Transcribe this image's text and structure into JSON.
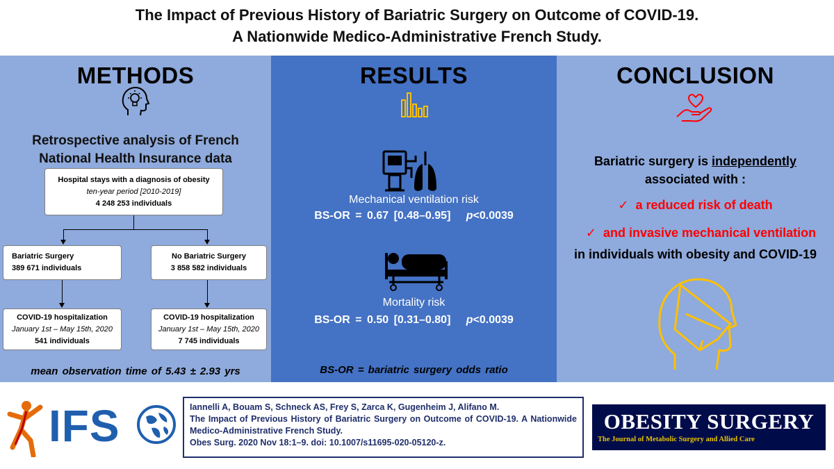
{
  "title": {
    "line1": "The Impact of Previous History of Bariatric Surgery on Outcome of COVID-19.",
    "line2": "A Nationwide Medico-Administrative French Study."
  },
  "methods": {
    "heading": "METHODS",
    "icon": "head-lightbulb-icon",
    "subtitle_line1": "Retrospective analysis of French",
    "subtitle_line2": "National Health Insurance data",
    "top_box": {
      "line1": "Hospital stays with a diagnosis of obesity",
      "line2": "ten-year period [2010-2019]",
      "line3": "4 248 253 individuals"
    },
    "left_box": {
      "line1": "Bariatric Surgery",
      "line2": "389 671 individuals"
    },
    "right_box": {
      "line1": "No Bariatric Surgery",
      "line2": "3 858 582 individuals"
    },
    "left_bottom_box": {
      "line1": "COVID-19 hospitalization",
      "line2": "January 1st – May 15th, 2020",
      "line3": "541 individuals"
    },
    "right_bottom_box": {
      "line1": "COVID-19 hospitalization",
      "line2": "January 1st – May 15th, 2020",
      "line3": "7 745 individuals"
    },
    "footer": "mean observation  time of 5.43 ± 2.93 yrs"
  },
  "results": {
    "heading": "RESULTS",
    "icon": "bar-chart-icon",
    "ventilation": {
      "icon": "ventilator-lungs-icon",
      "label": "Mechanical ventilation risk",
      "or_text": "BS-OR = 0.67   [0.48–0.95]",
      "p_letter": "p",
      "p_value": "<0.0039"
    },
    "mortality": {
      "icon": "hospital-bed-icon",
      "label": "Mortality risk",
      "or_text": "BS-OR = 0.50   [0.31–0.80]",
      "p_letter": "p",
      "p_value": "<0.0039"
    },
    "footer": "BS-OR = bariatric surgery  odds ratio"
  },
  "conclusion": {
    "heading": "CONCLUSION",
    "icon": "heart-hand-icon",
    "line1_pre": "Bariatric surgery is ",
    "line1_underlined": "independently",
    "line2": "associated with :",
    "point1": "a reduced risk of death",
    "point2": "and invasive mechanical ventilation",
    "line3": "in individuals with obesity and COVID-19",
    "bottom_icon": "face-mask-icon",
    "check_glyph": "✓"
  },
  "footer": {
    "ifso_logo_text": "IFS",
    "ifso_icon": "globe-icon",
    "citation": {
      "authors": "Iannelli A, Bouam S, Schneck AS, Frey S, Zarca K, Gugenheim J, Alifano M.",
      "title": "The Impact of Previous History of Bariatric Surgery on Outcome of COVID-19. A Nationwide Medico-Administrative French Study.",
      "source": "Obes Surg. 2020 Nov 18:1–9. doi: 10.1007/s11695-020-05120-z."
    },
    "journal_logo_title": "OBESITY SURGERY",
    "journal_logo_subtitle": "The Journal of Metabolic Surgery and Allied Care"
  },
  "colors": {
    "panel_light": "#8faadc",
    "panel_dark": "#4472c4",
    "icon_gold": "#ffc000",
    "accent_red": "#ff0000",
    "citation_navy": "#1f2e6b",
    "journal_bg": "#000c4a"
  }
}
